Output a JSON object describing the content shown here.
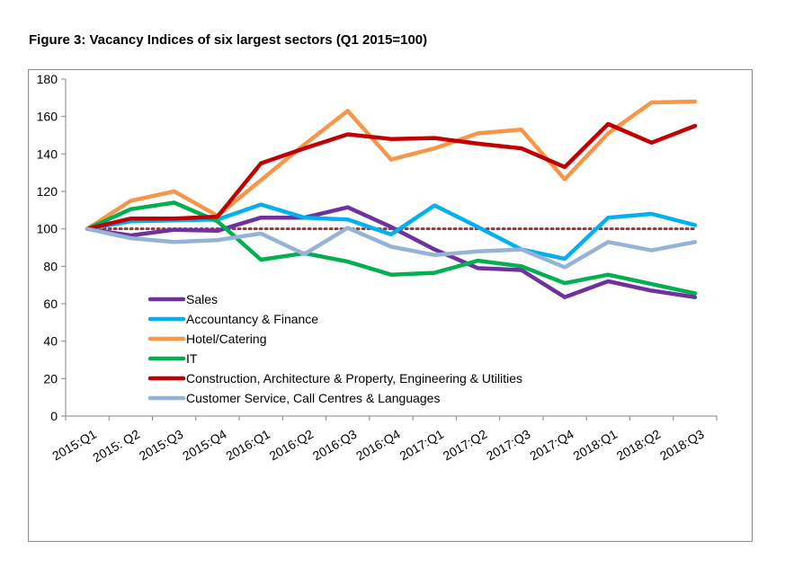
{
  "title": "Figure 3: Vacancy Indices of six largest sectors (Q1 2015=100)",
  "chart_data": {
    "type": "line",
    "title": "Figure 3: Vacancy Indices of six largest sectors (Q1 2015=100)",
    "xlabel": "",
    "ylabel": "",
    "ylim": [
      0,
      180
    ],
    "yticks": [
      "0",
      "20",
      "40",
      "60",
      "80",
      "100",
      "120",
      "140",
      "160",
      "180"
    ],
    "grid": false,
    "legend_position": "lower-left (inside plot)",
    "categories": [
      "2015:Q1",
      "2015: Q2",
      "2015:Q3",
      "2015:Q4",
      "2016:Q1",
      "2016:Q2",
      "2016:Q3",
      "2016:Q4",
      "2017:Q1",
      "2017:Q2",
      "2017:Q3",
      "2017:Q4",
      "2018:Q1",
      "2018:Q2",
      "2018:Q3"
    ],
    "series": [
      {
        "name": "Sales",
        "color": "#7030a0",
        "values": [
          100,
          96.5,
          99.5,
          99,
          106,
          106,
          111.5,
          101,
          89,
          79,
          78,
          63.5,
          72,
          67,
          63.5
        ]
      },
      {
        "name": "Accountancy & Finance",
        "color": "#00b0f0",
        "values": [
          100,
          104,
          104.5,
          105,
          113,
          106,
          105,
          97,
          112.5,
          101,
          89,
          84,
          106,
          108,
          102
        ]
      },
      {
        "name": "Hotel/Catering",
        "color": "#f79646",
        "values": [
          100,
          115,
          120,
          107,
          126,
          145,
          163,
          137,
          143,
          151,
          153,
          126.5,
          151,
          167.5,
          168
        ]
      },
      {
        "name": "IT",
        "color": "#00b050",
        "values": [
          100,
          110.5,
          114,
          104,
          83.5,
          87,
          82.5,
          75.5,
          76.5,
          83,
          80,
          71,
          75.5,
          70.5,
          65.5
        ]
      },
      {
        "name": "Construction, Architecture & Property, Engineering & Utilities",
        "color": "#c00000",
        "values": [
          100,
          105.5,
          105.5,
          106.5,
          135,
          143,
          150.5,
          148,
          148.5,
          145.5,
          143,
          133,
          156,
          146,
          155
        ]
      },
      {
        "name": "Customer Service, Call Centres & Languages",
        "color": "#95b3d7",
        "values": [
          100,
          95,
          93,
          94,
          97.5,
          86.5,
          100.5,
          90.5,
          86,
          88,
          89,
          79.5,
          93,
          88.5,
          93
        ]
      }
    ],
    "reference_line": {
      "value": 100,
      "color": "#953735",
      "style": "dotted"
    }
  }
}
